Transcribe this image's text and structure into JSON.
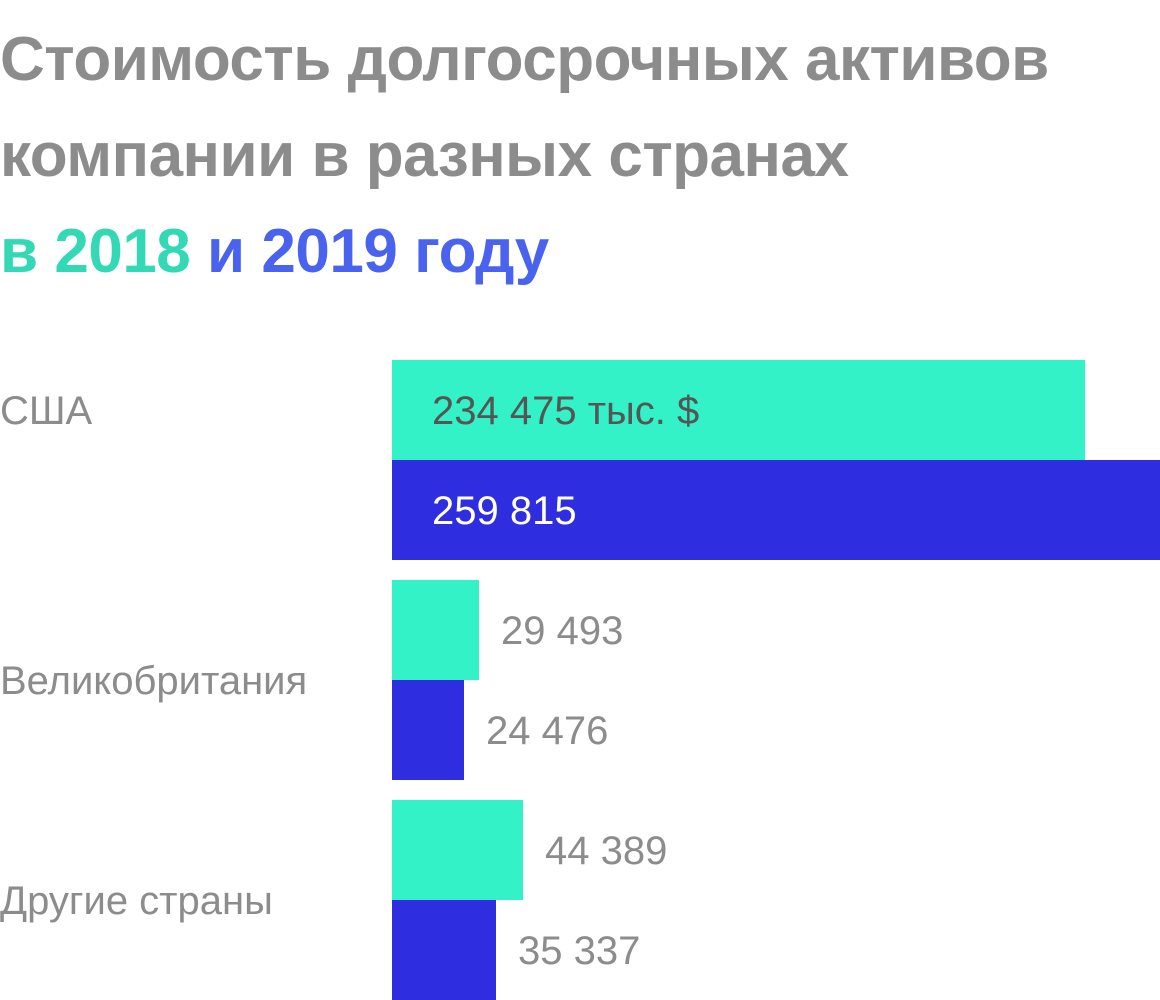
{
  "title": {
    "line1": "Стоимость долгосрочных активов",
    "line2": "компании в разных странах",
    "prefix": "в",
    "year1": "2018",
    "conj": "и",
    "year2": "2019",
    "suffix": "году"
  },
  "colors": {
    "title": "#8c8c8c",
    "accent_2018": "#33d9b5",
    "accent_2019_text": "#4a63ee",
    "bar_2018": "#33f2c8",
    "bar_2019": "#2e2ee0",
    "label": "#8c8c8c"
  },
  "chart_data": {
    "type": "bar",
    "orientation": "horizontal",
    "categories": [
      "США",
      "Великобритания",
      "Другие страны"
    ],
    "series": [
      {
        "name": "2018",
        "values": [
          234475,
          29493,
          44389
        ],
        "labels": [
          "234 475 тыс. $",
          "29 493",
          "44 389"
        ]
      },
      {
        "name": "2019",
        "values": [
          259815,
          24476,
          35337
        ],
        "labels": [
          "259 815",
          "24 476",
          "35 337"
        ]
      }
    ],
    "unit": "тыс. $",
    "xlim": [
      0,
      259815
    ],
    "grid": false,
    "legend": "title"
  }
}
